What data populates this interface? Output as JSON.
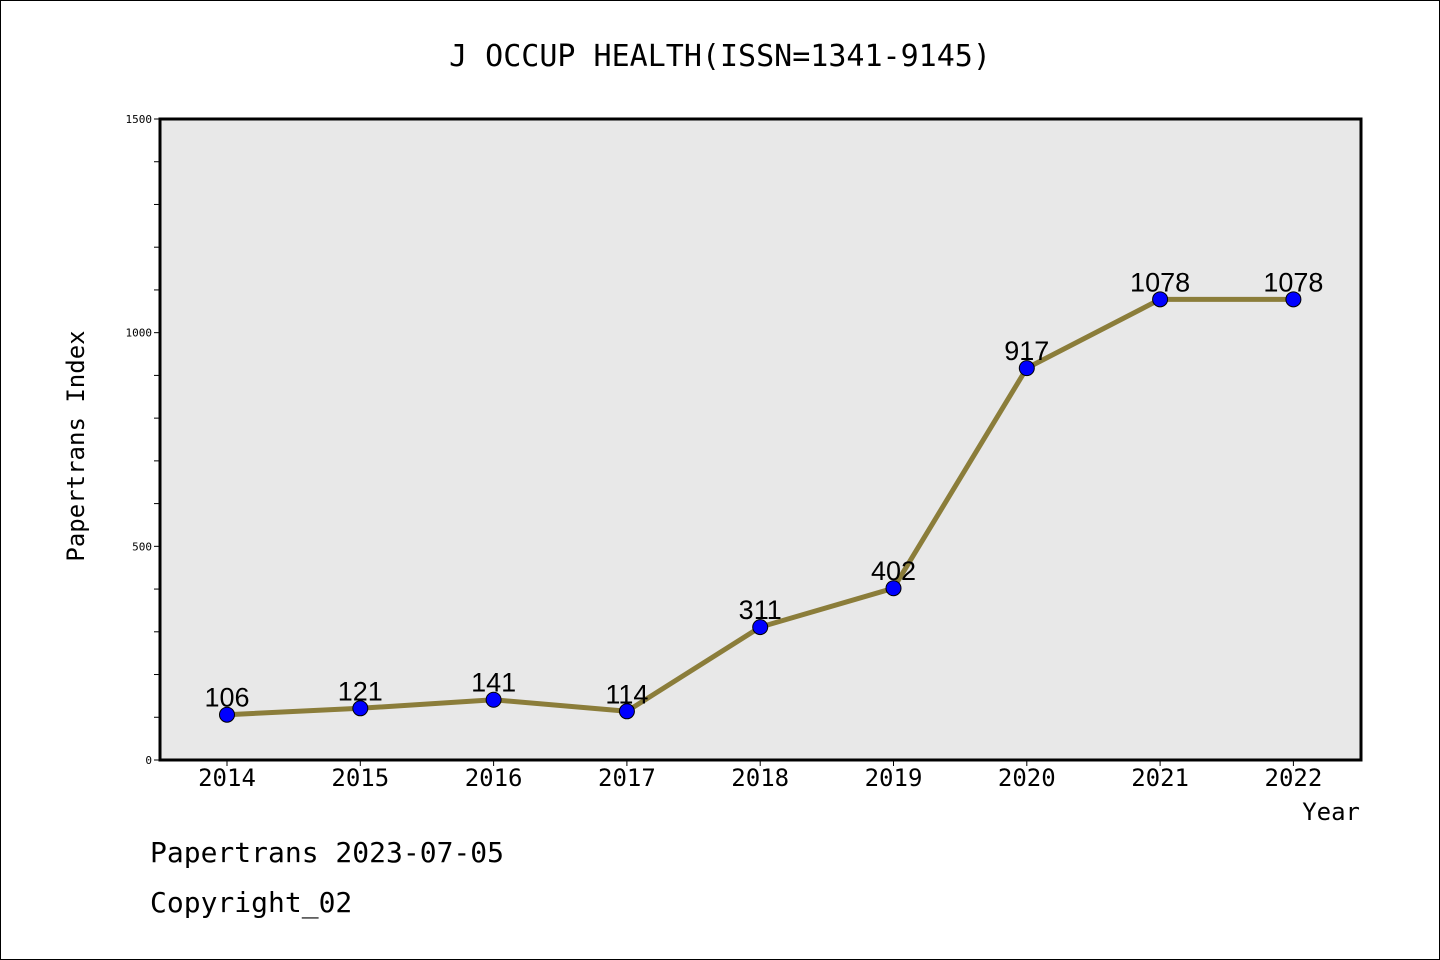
{
  "chart_data": {
    "type": "line",
    "title": "J OCCUP HEALTH(ISSN=1341-9145)",
    "xlabel": "Year",
    "ylabel": "Papertrans Index",
    "categories": [
      "2014",
      "2015",
      "2016",
      "2017",
      "2018",
      "2019",
      "2020",
      "2021",
      "2022"
    ],
    "series": [
      {
        "values": [
          106,
          121,
          141,
          114,
          311,
          402,
          917,
          1078,
          1078
        ],
        "data_labels": [
          "106",
          "121",
          "141",
          "114",
          "311",
          "402",
          "917",
          "1078",
          "1078"
        ]
      }
    ],
    "ylim": [
      0,
      1500
    ],
    "yticks": [
      0,
      500,
      1000,
      1500
    ],
    "ytick_labels": [
      "0",
      "500",
      "1000",
      "1500"
    ],
    "y_minor_step": 100,
    "grid": false,
    "legend": "none",
    "colors": {
      "line": "#8b7d3a",
      "marker": "#0000ff",
      "plot_background": "#e8e8e8"
    }
  },
  "footer": {
    "line1": "Papertrans 2023-07-05",
    "line2": "Copyright_02"
  }
}
